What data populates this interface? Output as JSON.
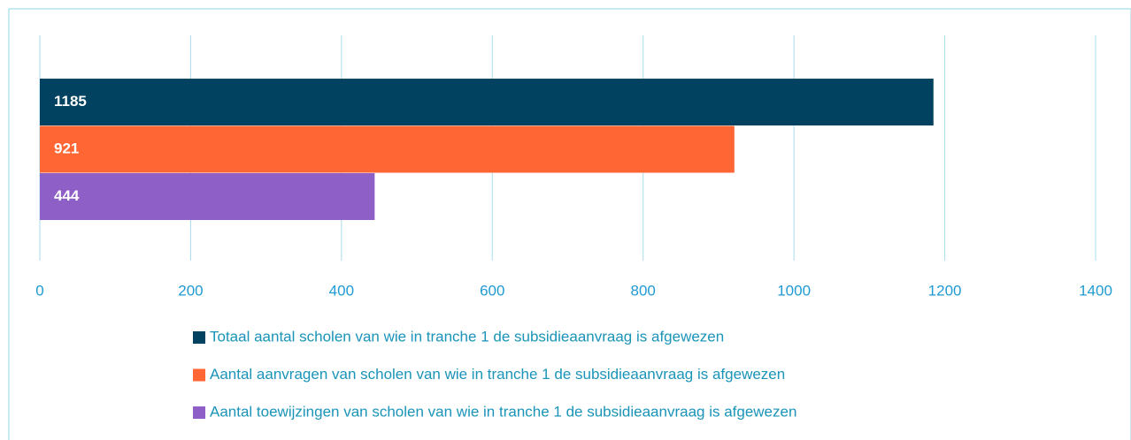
{
  "chart_data": {
    "type": "bar",
    "orientation": "horizontal",
    "categories": [
      null
    ],
    "series": [
      {
        "name": "Totaal aantal scholen van wie in tranche 1 de subsidieaanvraag is afgewezen",
        "color": "#00425f",
        "values": [
          1185
        ]
      },
      {
        "name": "Aantal aanvragen van scholen van wie in tranche 1 de subsidieaanvraag is afgewezen",
        "color": "#ff6633",
        "values": [
          921
        ]
      },
      {
        "name": "Aantal toewijzingen van scholen van wie in tranche 1 de subsidieaanvraag is afgewezen",
        "color": "#8e5fc6",
        "values": [
          444
        ]
      }
    ],
    "xlim": [
      0,
      1400
    ],
    "xticks": [
      0,
      200,
      400,
      600,
      800,
      1000,
      1200,
      1400
    ],
    "grid": true,
    "legend": "bottom"
  }
}
